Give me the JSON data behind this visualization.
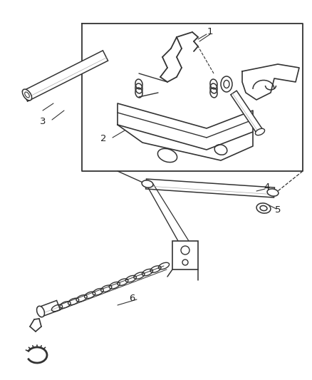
{
  "bg_color": "#ffffff",
  "line_color": "#333333",
  "label_color": "#222222",
  "fig_width": 4.39,
  "fig_height": 5.33,
  "dpi": 100
}
